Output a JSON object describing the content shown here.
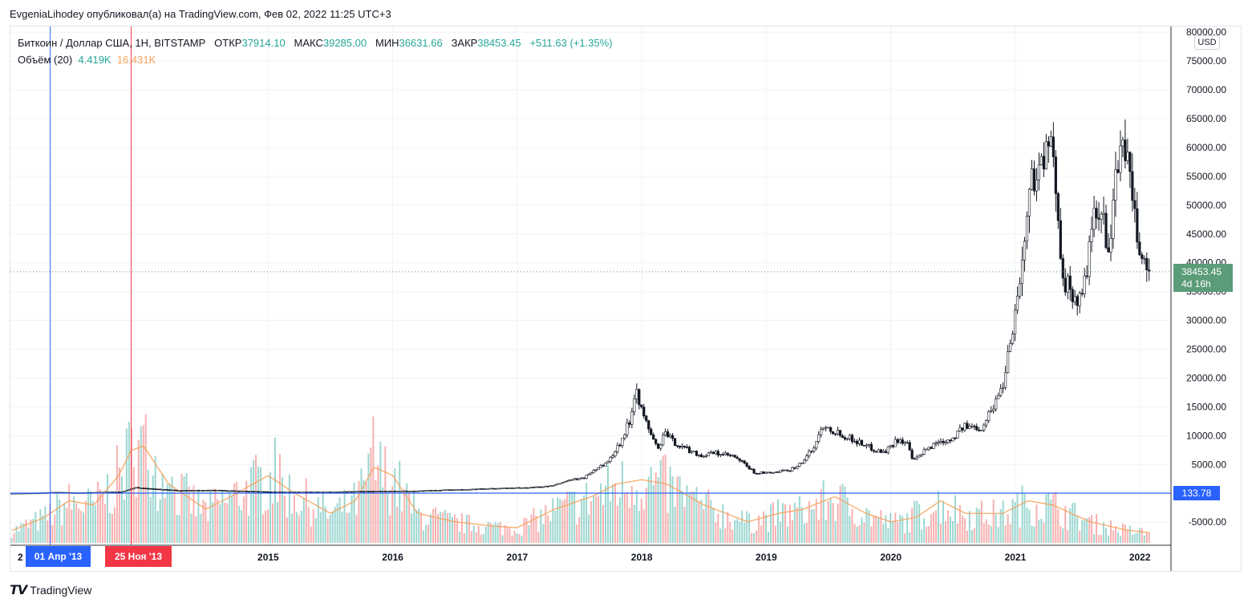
{
  "header": {
    "publisher_line": "EvgeniaLihodey опубликовал(а) на TradingView.com, Фев 02, 2022 11:25 UTC+3"
  },
  "legend": {
    "symbol": "Биткоин / Доллар США, 1Н, BITSTAMP",
    "open_label": "ОТКР",
    "open": "37914.10",
    "high_label": "МАКС",
    "high": "39285.00",
    "low_label": "МИН",
    "low": "36631.66",
    "close_label": "ЗАКР",
    "close": "38453.45",
    "change": "+511.63 (+1.35%)",
    "volume_label": "Объём (20)",
    "volume_value": "4.419K",
    "volume_ma": "16.431K"
  },
  "price_axis": {
    "currency_badge": "USD",
    "current_price": "38453.45",
    "time_to_close": "4d 16h",
    "hline_value": "133.78"
  },
  "markers": {
    "blue_date": "01 Апр '13",
    "red_date": "25 Ноя '13"
  },
  "footer": {
    "logo_text": "TradingView"
  },
  "colors": {
    "up": "#26a69a",
    "down": "#ef5350",
    "volume_ma": "#f7a35c",
    "hline": "#2962ff",
    "red_vline": "#f23645",
    "price_tag": "#5b9c79",
    "grid": "#f0f3fa"
  },
  "chart_data": {
    "type": "candlestick",
    "title": "Биткоин / Доллар США, 1Н, BITSTAMP",
    "ylim": [
      -9000,
      81000
    ],
    "y_ticks": [
      -5000,
      5000,
      10000,
      15000,
      20000,
      25000,
      30000,
      35000,
      40000,
      45000,
      50000,
      55000,
      60000,
      65000,
      70000,
      75000,
      80000
    ],
    "y_tick_labels": [
      "-5000.00",
      "5000.00",
      "10000.00",
      "15000.00",
      "20000.00",
      "25000.00",
      "30000.00",
      "35000.00",
      "40000.00",
      "45000.00",
      "50000.00",
      "55000.00",
      "60000.00",
      "65000.00",
      "70000.00",
      "75000.00",
      "80000.00"
    ],
    "xlim": [
      2012.93,
      2022.25
    ],
    "x_ticks": [
      2015,
      2016,
      2017,
      2018,
      2019,
      2020,
      2021,
      2022
    ],
    "x_tick_labels": [
      "2015",
      "2016",
      "2017",
      "2018",
      "2019",
      "2020",
      "2021",
      "2022"
    ],
    "x_edge_label": "2",
    "hline_price": 133.78,
    "current_price": 38453.45,
    "vlines": [
      2013.25,
      2013.9
    ],
    "price_path": [
      [
        2012.95,
        12
      ],
      [
        2013.2,
        90
      ],
      [
        2013.3,
        200
      ],
      [
        2013.5,
        100
      ],
      [
        2013.85,
        300
      ],
      [
        2013.95,
        1000
      ],
      [
        2014.1,
        800
      ],
      [
        2014.3,
        500
      ],
      [
        2014.6,
        550
      ],
      [
        2014.9,
        350
      ],
      [
        2015.1,
        230
      ],
      [
        2015.5,
        250
      ],
      [
        2015.9,
        400
      ],
      [
        2016.2,
        420
      ],
      [
        2016.5,
        650
      ],
      [
        2016.9,
        900
      ],
      [
        2017.1,
        1000
      ],
      [
        2017.3,
        1300
      ],
      [
        2017.45,
        2400
      ],
      [
        2017.55,
        2600
      ],
      [
        2017.65,
        4300
      ],
      [
        2017.75,
        5500
      ],
      [
        2017.85,
        9000
      ],
      [
        2017.93,
        13000
      ],
      [
        2017.97,
        19000
      ],
      [
        2018.02,
        14000
      ],
      [
        2018.1,
        10000
      ],
      [
        2018.15,
        7500
      ],
      [
        2018.2,
        10500
      ],
      [
        2018.3,
        8500
      ],
      [
        2018.4,
        7500
      ],
      [
        2018.5,
        6500
      ],
      [
        2018.6,
        7000
      ],
      [
        2018.75,
        6400
      ],
      [
        2018.85,
        5000
      ],
      [
        2018.92,
        3600
      ],
      [
        2019.05,
        3500
      ],
      [
        2019.2,
        4000
      ],
      [
        2019.3,
        5200
      ],
      [
        2019.4,
        8000
      ],
      [
        2019.48,
        12000
      ],
      [
        2019.55,
        11000
      ],
      [
        2019.7,
        9500
      ],
      [
        2019.8,
        8500
      ],
      [
        2019.9,
        7500
      ],
      [
        2019.97,
        7200
      ],
      [
        2020.08,
        9500
      ],
      [
        2020.15,
        8500
      ],
      [
        2020.2,
        5500
      ],
      [
        2020.3,
        7500
      ],
      [
        2020.4,
        9000
      ],
      [
        2020.5,
        9400
      ],
      [
        2020.6,
        11500
      ],
      [
        2020.75,
        11500
      ],
      [
        2020.85,
        15500
      ],
      [
        2020.92,
        19000
      ],
      [
        2020.97,
        26000
      ],
      [
        2021.03,
        33000
      ],
      [
        2021.1,
        45000
      ],
      [
        2021.15,
        55000
      ],
      [
        2021.25,
        58000
      ],
      [
        2021.3,
        60000
      ],
      [
        2021.36,
        50000
      ],
      [
        2021.4,
        38000
      ],
      [
        2021.45,
        35000
      ],
      [
        2021.55,
        33000
      ],
      [
        2021.6,
        40000
      ],
      [
        2021.65,
        47000
      ],
      [
        2021.7,
        48000
      ],
      [
        2021.78,
        43000
      ],
      [
        2021.83,
        55000
      ],
      [
        2021.88,
        62000
      ],
      [
        2021.92,
        58000
      ],
      [
        2021.96,
        49000
      ],
      [
        2022.02,
        42000
      ],
      [
        2022.08,
        38453
      ]
    ],
    "volume_ma_path": [
      [
        2012.95,
        1500
      ],
      [
        2013.2,
        3000
      ],
      [
        2013.4,
        5000
      ],
      [
        2013.6,
        4500
      ],
      [
        2013.8,
        8000
      ],
      [
        2013.9,
        11000
      ],
      [
        2014.0,
        11500
      ],
      [
        2014.2,
        7000
      ],
      [
        2014.5,
        4000
      ],
      [
        2014.7,
        5500
      ],
      [
        2015.0,
        8000
      ],
      [
        2015.2,
        6000
      ],
      [
        2015.5,
        3500
      ],
      [
        2015.7,
        5000
      ],
      [
        2015.85,
        9000
      ],
      [
        2016.0,
        8000
      ],
      [
        2016.2,
        3500
      ],
      [
        2016.5,
        2500
      ],
      [
        2016.8,
        2000
      ],
      [
        2017.0,
        1800
      ],
      [
        2017.3,
        4000
      ],
      [
        2017.6,
        5500
      ],
      [
        2017.8,
        7000
      ],
      [
        2018.0,
        7500
      ],
      [
        2018.2,
        7000
      ],
      [
        2018.5,
        4500
      ],
      [
        2018.85,
        2500
      ],
      [
        2019.1,
        3500
      ],
      [
        2019.3,
        4000
      ],
      [
        2019.55,
        5500
      ],
      [
        2019.8,
        3500
      ],
      [
        2020.0,
        2500
      ],
      [
        2020.2,
        3000
      ],
      [
        2020.4,
        5000
      ],
      [
        2020.6,
        3500
      ],
      [
        2020.9,
        3500
      ],
      [
        2021.1,
        5000
      ],
      [
        2021.3,
        4500
      ],
      [
        2021.6,
        2500
      ],
      [
        2021.9,
        1500
      ],
      [
        2022.08,
        1200
      ]
    ],
    "volume_spikes": [
      [
        2013.3,
        4000
      ],
      [
        2013.92,
        9000
      ],
      [
        2013.99,
        14000
      ],
      [
        2014.08,
        8000
      ],
      [
        2014.2,
        7000
      ],
      [
        2014.35,
        4500
      ],
      [
        2014.8,
        5500
      ],
      [
        2015.05,
        12500
      ],
      [
        2015.85,
        15000
      ],
      [
        2015.9,
        7000
      ],
      [
        2017.7,
        3500
      ],
      [
        2017.95,
        4500
      ],
      [
        2018.08,
        6000
      ],
      [
        2018.86,
        3500
      ],
      [
        2019.5,
        3500
      ],
      [
        2020.2,
        5000
      ],
      [
        2021.0,
        3500
      ],
      [
        2021.35,
        4000
      ]
    ]
  }
}
